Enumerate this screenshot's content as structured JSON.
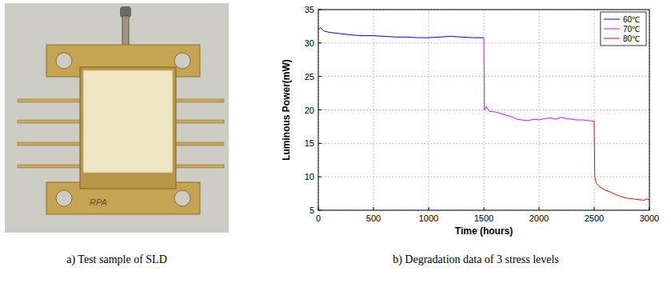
{
  "chart_data": {
    "type": "line",
    "xlabel": "Time (hours)",
    "ylabel": "Luminous Power(mW)",
    "xlim": [
      0,
      3000
    ],
    "xticks": [
      0,
      500,
      1000,
      1500,
      2000,
      2500,
      3000
    ],
    "ylim": [
      5,
      35
    ],
    "yticks": [
      5,
      10,
      15,
      20,
      25,
      30,
      35
    ],
    "grid": true,
    "legend": "upper right",
    "series": [
      {
        "name": "60℃",
        "color": "#0000ff",
        "x": [
          0,
          20,
          50,
          100,
          200,
          300,
          400,
          500,
          600,
          700,
          800,
          900,
          1000,
          1100,
          1200,
          1300,
          1400,
          1500
        ],
        "values": [
          32.0,
          32.3,
          31.8,
          31.6,
          31.4,
          31.2,
          31.1,
          31.1,
          31.0,
          30.9,
          30.9,
          30.8,
          30.8,
          30.9,
          31.0,
          30.9,
          30.8,
          30.8
        ]
      },
      {
        "name": "70℃",
        "color": "#ff00ff",
        "x": [
          1500,
          1505,
          1520,
          1550,
          1600,
          1650,
          1700,
          1750,
          1800,
          1850,
          1900,
          1950,
          2000,
          2050,
          2100,
          2150,
          2200,
          2250,
          2300,
          2350,
          2400,
          2450,
          2500
        ],
        "values": [
          30.8,
          20.0,
          20.5,
          19.8,
          19.7,
          19.5,
          19.2,
          19.0,
          18.6,
          18.5,
          18.4,
          18.6,
          18.5,
          18.7,
          18.8,
          18.6,
          18.9,
          18.7,
          18.6,
          18.5,
          18.5,
          18.4,
          18.3
        ]
      },
      {
        "name": "80℃",
        "color": "#ff0000",
        "x": [
          2500,
          2505,
          2520,
          2550,
          2600,
          2650,
          2700,
          2750,
          2800,
          2850,
          2900,
          2950,
          2980,
          3000
        ],
        "values": [
          18.3,
          10.0,
          9.0,
          8.5,
          8.0,
          7.7,
          7.3,
          7.0,
          6.8,
          6.7,
          6.6,
          6.5,
          6.7,
          6.5
        ]
      }
    ]
  },
  "photo": {
    "marking": "RPA"
  },
  "captions": {
    "a": "a) Test sample of SLD",
    "b": "b) Degradation data of 3 stress levels"
  }
}
